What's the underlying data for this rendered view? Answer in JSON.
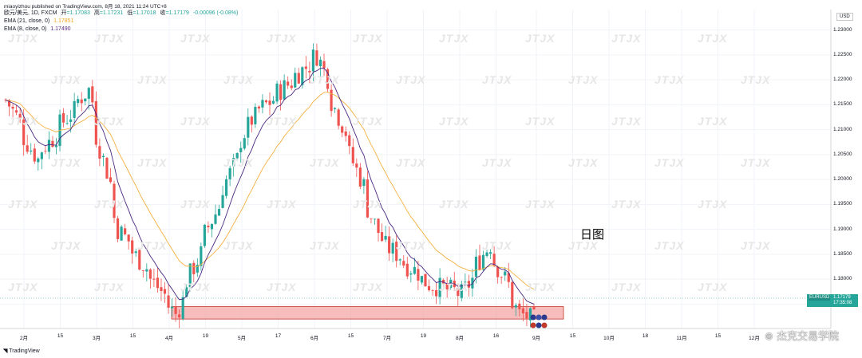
{
  "header": {
    "publisher": "miaoyizhou published on TradingView.com, 8月 18, 2021 11:24 UTC+8",
    "symbol_line": "欧元/美元, 1D, FXCM",
    "ohlc": {
      "open_label": "开",
      "open": "=1.17083",
      "high_label": "高",
      "high": "=1.17231",
      "low_label": "低",
      "low": "=1.17018",
      "close_label": "收",
      "close": "=1.17179",
      "change": "-0.00096 (-0.08%)"
    },
    "ema21_label": "EMA (21, close, 0)",
    "ema21_value": "1.17851",
    "ema8_label": "EMA (8, close, 0)",
    "ema8_value": "1.17490"
  },
  "currency": "USD",
  "y_axis_labels": [
    "1.23000",
    "1.22500",
    "1.22000",
    "1.21500",
    "1.21000",
    "1.20500",
    "1.20000",
    "1.19500",
    "1.19000",
    "1.18500",
    "1.18000",
    "1.17500"
  ],
  "x_axis_labels": [
    "2月",
    "15",
    "3月",
    "15",
    "4月",
    "19",
    "5月",
    "17",
    "6月",
    "15",
    "7月",
    "19",
    "8月",
    "16",
    "9月",
    "15",
    "10月",
    "18",
    "11月",
    "15",
    "12月"
  ],
  "price_tag": {
    "symbol": "EURUSD",
    "price": "1.17179",
    "countdown": "17:35:08"
  },
  "annotation": "日图",
  "branding": {
    "tradingview": "TradingView",
    "wechat": "杰克交易学院"
  },
  "watermark_text": "JTJX",
  "colors": {
    "up": "#26a69a",
    "down": "#ef5350",
    "ema21": "#f5b041",
    "ema8": "#4a2780",
    "zone_fill": "#f4a7a6",
    "zone_border": "#c0392b"
  },
  "chart_data": {
    "type": "candlestick",
    "symbol": "EURUSD",
    "timeframe": "1D",
    "x_range": [
      "2021-01-25",
      "2021-08-17"
    ],
    "ylim": [
      1.1685,
      1.2325
    ],
    "support_zone": {
      "low": 1.172,
      "high": 1.1745,
      "from": "2021-03-29",
      "to": "2021-08-26"
    },
    "key_points": [
      {
        "date": "2021-01-25",
        "close": 1.216
      },
      {
        "date": "2021-02-05",
        "close": 1.204
      },
      {
        "date": "2021-02-25",
        "close": 1.218
      },
      {
        "date": "2021-03-09",
        "close": 1.19
      },
      {
        "date": "2021-03-31",
        "close": 1.173
      },
      {
        "date": "2021-04-29",
        "close": 1.212
      },
      {
        "date": "2021-05-25",
        "close": 1.225
      },
      {
        "date": "2021-06-18",
        "close": 1.188
      },
      {
        "date": "2021-07-07",
        "close": 1.179
      },
      {
        "date": "2021-07-20",
        "close": 1.177
      },
      {
        "date": "2021-07-30",
        "close": 1.187
      },
      {
        "date": "2021-08-11",
        "close": 1.173
      },
      {
        "date": "2021-08-17",
        "close": 1.1718
      }
    ]
  }
}
